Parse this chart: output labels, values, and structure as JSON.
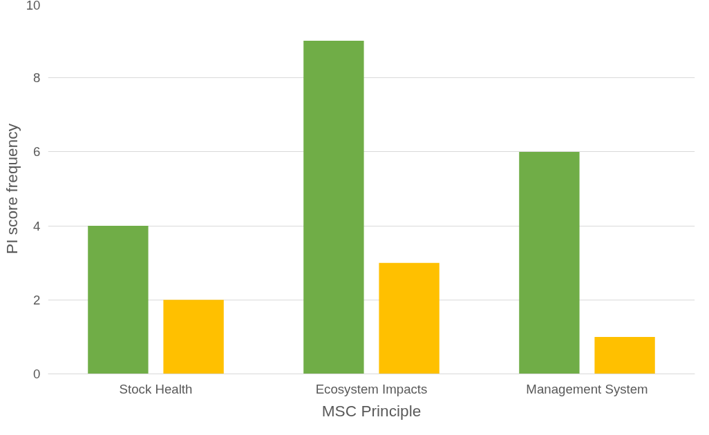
{
  "chart_data": {
    "type": "bar",
    "xlabel": "MSC Principle",
    "ylabel": "PI score frequency",
    "categories": [
      "Stock Health",
      "Ecosystem Impacts",
      "Management System"
    ],
    "series": [
      {
        "color": "#70ad47",
        "values": [
          4,
          9,
          6
        ]
      },
      {
        "color": "#ffc000",
        "values": [
          2,
          3,
          1
        ]
      }
    ],
    "ylim": [
      0,
      10
    ],
    "yticks": [
      0,
      2,
      4,
      6,
      8,
      10
    ],
    "grid": "y"
  }
}
